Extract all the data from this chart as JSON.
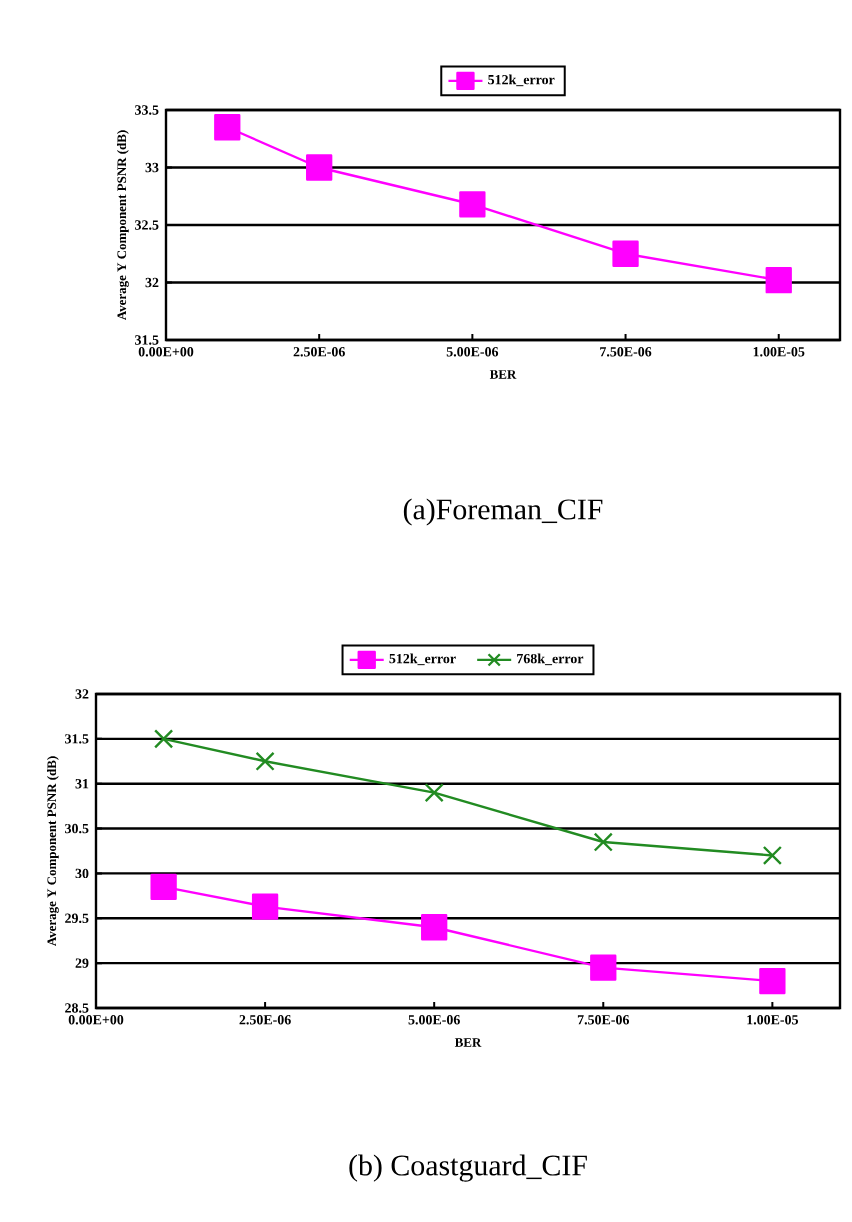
{
  "chart_data": [
    {
      "type": "line",
      "title": "(a)Foreman_CIF",
      "xlabel": "BER",
      "ylabel": "Average Y Component PSNR (dB)",
      "x": [
        1e-06,
        2.5e-06,
        5e-06,
        7.5e-06,
        1e-05
      ],
      "series": [
        {
          "name": "512k_error",
          "color": "#ff00ff",
          "marker": "square",
          "values": [
            33.35,
            33.0,
            32.68,
            32.25,
            32.02
          ]
        }
      ],
      "xlim": [
        0,
        1.1e-05
      ],
      "xticks": [
        {
          "value": 0,
          "label": "0.00E+00"
        },
        {
          "value": 2.5e-06,
          "label": "2.50E-06"
        },
        {
          "value": 5e-06,
          "label": "5.00E-06"
        },
        {
          "value": 7.5e-06,
          "label": "7.50E-06"
        },
        {
          "value": 1e-05,
          "label": "1.00E-05"
        }
      ],
      "ylim": [
        31.5,
        33.5
      ],
      "yticks": [
        31.5,
        32,
        32.5,
        33,
        33.5
      ],
      "grid": "y",
      "legend": "top",
      "line_style": "solid"
    },
    {
      "type": "line",
      "title": "(b) Coastguard_CIF",
      "xlabel": "BER",
      "ylabel": "Average Y Component PSNR (dB)",
      "x": [
        1e-06,
        2.5e-06,
        5e-06,
        7.5e-06,
        1e-05
      ],
      "series": [
        {
          "name": "512k_error",
          "color": "#ff00ff",
          "marker": "square",
          "values": [
            29.85,
            29.63,
            29.4,
            28.95,
            28.8
          ]
        },
        {
          "name": "768k_error",
          "color": "#228b22",
          "marker": "cross",
          "values": [
            31.5,
            31.25,
            30.9,
            30.35,
            30.2
          ]
        }
      ],
      "xlim": [
        0,
        1.1e-05
      ],
      "xticks": [
        {
          "value": 0,
          "label": "0.00E+00"
        },
        {
          "value": 2.5e-06,
          "label": "2.50E-06"
        },
        {
          "value": 5e-06,
          "label": "5.00E-06"
        },
        {
          "value": 7.5e-06,
          "label": "7.50E-06"
        },
        {
          "value": 1e-05,
          "label": "1.00E-05"
        }
      ],
      "ylim": [
        28.5,
        32
      ],
      "yticks": [
        28.5,
        29,
        29.5,
        30,
        30.5,
        31,
        31.5,
        32
      ],
      "grid": "y",
      "legend": "top",
      "line_style": "solid"
    }
  ]
}
